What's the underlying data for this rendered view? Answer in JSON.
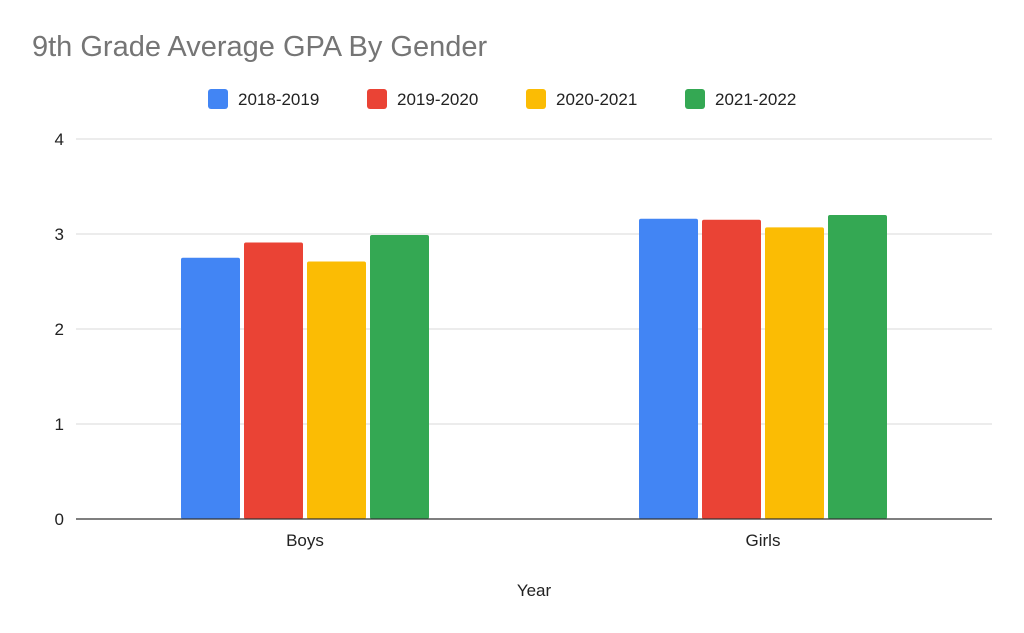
{
  "chart_data": {
    "type": "bar",
    "title": "9th Grade Average GPA By Gender",
    "xlabel": "Year",
    "ylabel": "",
    "categories": [
      "Boys",
      "Girls"
    ],
    "ylim": [
      0,
      4
    ],
    "yticks": [
      0,
      1,
      2,
      3,
      4
    ],
    "grid": true,
    "legend_position": "top",
    "series": [
      {
        "name": "2018-2019",
        "color": "#4285f4",
        "values": [
          2.75,
          3.16
        ]
      },
      {
        "name": "2019-2020",
        "color": "#ea4335",
        "values": [
          2.91,
          3.15
        ]
      },
      {
        "name": "2020-2021",
        "color": "#fbbc04",
        "values": [
          2.71,
          3.07
        ]
      },
      {
        "name": "2021-2022",
        "color": "#34a853",
        "values": [
          2.99,
          3.2
        ]
      }
    ]
  }
}
